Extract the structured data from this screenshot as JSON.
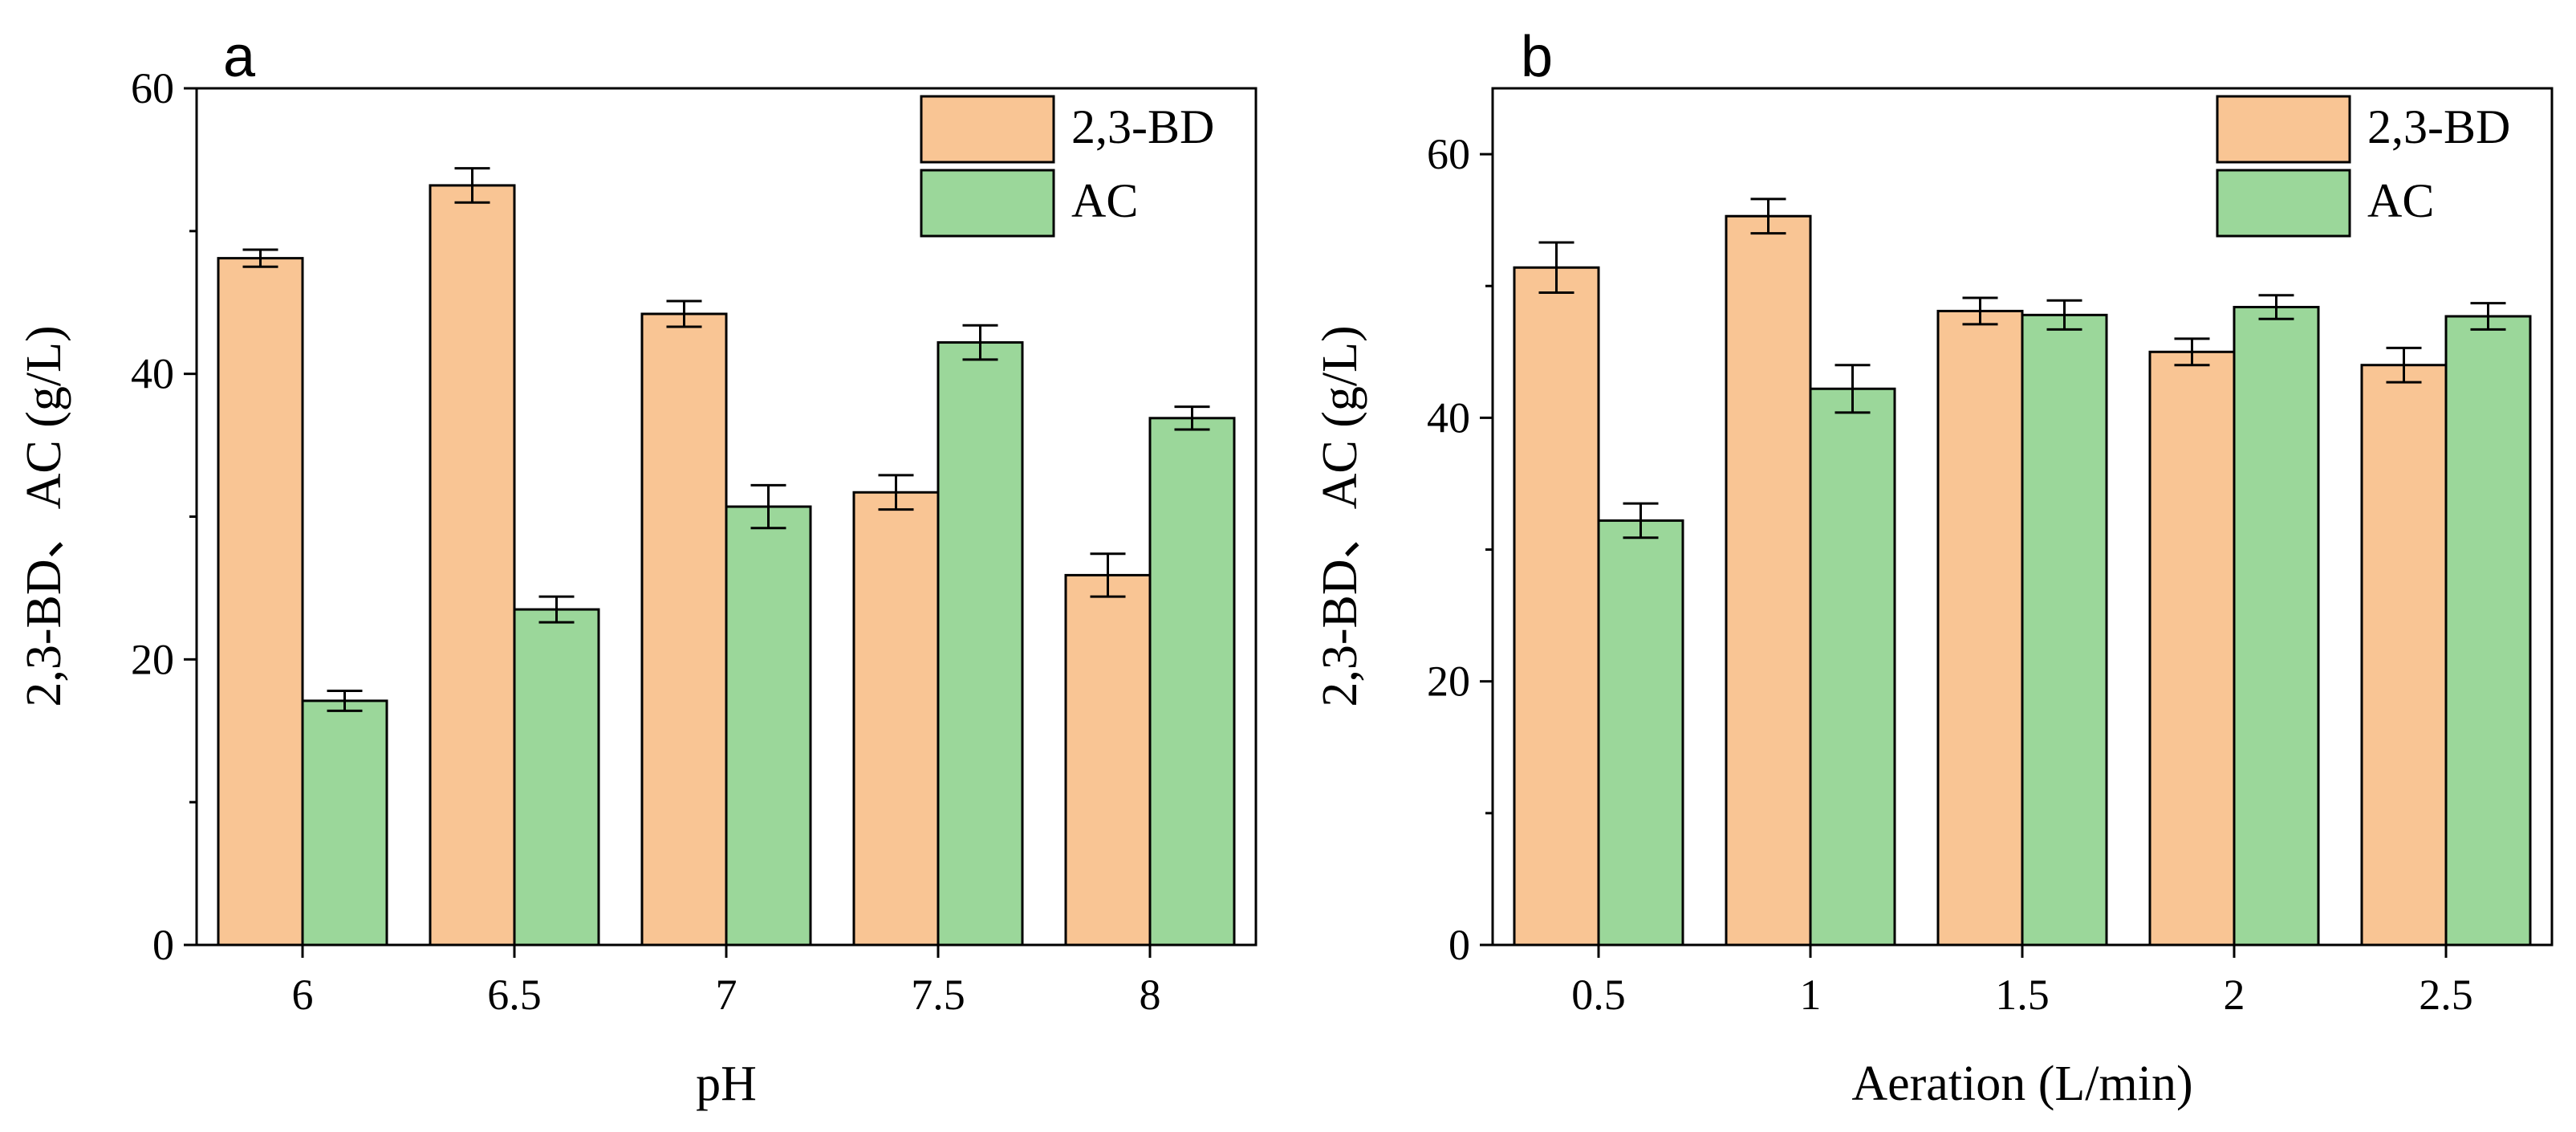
{
  "colors": {
    "bd": "#F9C594",
    "ac": "#9BD79A",
    "stroke": "#000000"
  },
  "chart_data": [
    {
      "type": "bar",
      "panel_label": "a",
      "title": "",
      "xlabel": "pH",
      "ylabel": "2,3-BD、AC (g/L)",
      "ylim": [
        0,
        60
      ],
      "yticks": [
        "0",
        "20",
        "40",
        "60"
      ],
      "ytick_values": [
        0,
        20,
        40,
        60
      ],
      "categories": [
        "6",
        "6.5",
        "7",
        "7.5",
        "8"
      ],
      "legend_position": "top-right",
      "series": [
        {
          "name": "2,3-BD",
          "color_key": "bd",
          "values": [
            48.1,
            53.2,
            44.2,
            31.7,
            25.9
          ],
          "errors": [
            0.6,
            1.2,
            0.9,
            1.2,
            1.5
          ]
        },
        {
          "name": "AC",
          "color_key": "ac",
          "values": [
            17.1,
            23.5,
            30.7,
            42.2,
            36.9
          ],
          "errors": [
            0.7,
            0.9,
            1.5,
            1.2,
            0.8
          ]
        }
      ]
    },
    {
      "type": "bar",
      "panel_label": "b",
      "title": "",
      "xlabel": "Aeration (L/min)",
      "ylabel": "2,3-BD、AC (g/L)",
      "ylim": [
        0,
        65
      ],
      "yticks": [
        "0",
        "20",
        "40",
        "60"
      ],
      "ytick_values": [
        0,
        20,
        40,
        60
      ],
      "categories": [
        "0.5",
        "1",
        "1.5",
        "2",
        "2.5"
      ],
      "legend_position": "top-right",
      "series": [
        {
          "name": "2,3-BD",
          "color_key": "bd",
          "values": [
            51.4,
            55.3,
            48.1,
            45.0,
            44.0
          ],
          "errors": [
            1.9,
            1.3,
            1.0,
            1.0,
            1.3
          ]
        },
        {
          "name": "AC",
          "color_key": "ac",
          "values": [
            32.2,
            42.2,
            47.8,
            48.4,
            47.7
          ],
          "errors": [
            1.3,
            1.8,
            1.1,
            0.9,
            1.0
          ]
        }
      ]
    }
  ]
}
